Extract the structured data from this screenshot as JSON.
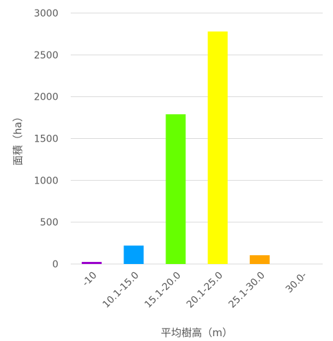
{
  "chart_data": {
    "type": "bar",
    "title": "",
    "xlabel": "平均樹高（m）",
    "ylabel": "面積（ha）",
    "categories": [
      "-10",
      "10.1-15.0",
      "15.1-20.0",
      "20.1-25.0",
      "25.1-30.0",
      "30.0-"
    ],
    "values": [
      25,
      220,
      1790,
      2780,
      105,
      0
    ],
    "colors": [
      "#9900cc",
      "#00a0ff",
      "#66ff00",
      "#ffff00",
      "#ffa500",
      "#cccccc"
    ],
    "ylim": [
      0,
      3000
    ],
    "yticks": [
      0,
      500,
      1000,
      1500,
      2000,
      2500,
      3000
    ],
    "ytick_labels": [
      "0",
      "500",
      "1000",
      "1500",
      "2000",
      "2500",
      "3000"
    ],
    "grid": true,
    "legend": "none"
  }
}
